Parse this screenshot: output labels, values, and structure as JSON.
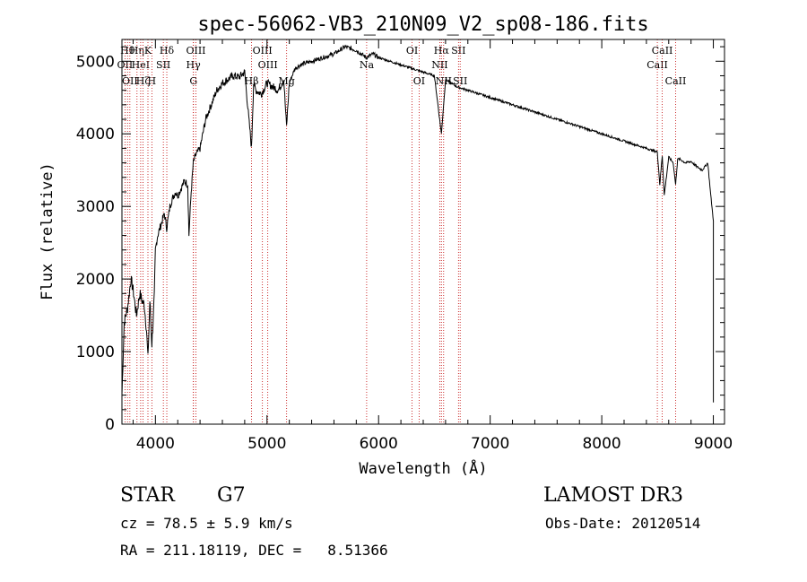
{
  "chart_data": {
    "type": "line",
    "title": "spec-56062-VB3_210N09_V2_sp08-186.fits",
    "xlabel": "Wavelength (Å)",
    "ylabel": "Flux (relative)",
    "xlim": [
      3700,
      9100
    ],
    "ylim": [
      0,
      5300
    ],
    "x_ticks": [
      4000,
      5000,
      6000,
      7000,
      8000,
      9000
    ],
    "y_ticks": [
      0,
      1000,
      2000,
      3000,
      4000,
      5000
    ],
    "series": [
      {
        "name": "flux",
        "x": [
          3700,
          3720,
          3750,
          3780,
          3800,
          3830,
          3860,
          3880,
          3900,
          3920,
          3933,
          3950,
          3968,
          3990,
          4000,
          4020,
          4050,
          4080,
          4101,
          4130,
          4150,
          4180,
          4200,
          4230,
          4260,
          4290,
          4300,
          4320,
          4340,
          4360,
          4400,
          4450,
          4500,
          4550,
          4600,
          4650,
          4700,
          4750,
          4800,
          4861,
          4880,
          4900,
          4950,
          5000,
          5050,
          5100,
          5150,
          5175,
          5200,
          5250,
          5300,
          5400,
          5500,
          5600,
          5700,
          5800,
          5890,
          5950,
          6000,
          6100,
          6200,
          6300,
          6400,
          6500,
          6563,
          6600,
          6650,
          6700,
          6800,
          6900,
          7000,
          7100,
          7200,
          7300,
          7400,
          7500,
          7600,
          7700,
          7800,
          7900,
          8000,
          8100,
          8200,
          8300,
          8400,
          8498,
          8520,
          8542,
          8560,
          8600,
          8640,
          8662,
          8680,
          8700,
          8750,
          8800,
          8850,
          8900,
          8950,
          8980,
          9000
        ],
        "y": [
          400,
          1400,
          1600,
          2000,
          1850,
          1500,
          1800,
          1700,
          1650,
          1300,
          900,
          1700,
          1100,
          1750,
          2400,
          2600,
          2750,
          2900,
          2700,
          3000,
          3100,
          3200,
          3150,
          3250,
          3350,
          3300,
          2600,
          3200,
          3600,
          3700,
          3800,
          4200,
          4400,
          4600,
          4700,
          4750,
          4800,
          4780,
          4850,
          3800,
          4700,
          4600,
          4550,
          4700,
          4650,
          4600,
          4750,
          4100,
          4700,
          4900,
          4950,
          5000,
          5050,
          5100,
          5200,
          5150,
          5050,
          5100,
          5050,
          5000,
          4950,
          4900,
          4850,
          4800,
          4000,
          4750,
          4700,
          4650,
          4600,
          4550,
          4500,
          4450,
          4400,
          4350,
          4300,
          4250,
          4200,
          4150,
          4100,
          4050,
          4000,
          3950,
          3900,
          3850,
          3800,
          3750,
          3300,
          3700,
          3150,
          3680,
          3600,
          3300,
          3650,
          3650,
          3600,
          3620,
          3550,
          3500,
          3600,
          3100,
          2800
        ]
      }
    ],
    "lines": [
      {
        "wl": 3727,
        "label": "OII",
        "row": 2
      },
      {
        "wl": 3750,
        "label": "Hθ",
        "row": 1
      },
      {
        "wl": 3771,
        "label": "OII",
        "row": 3
      },
      {
        "wl": 3835,
        "label": "Hη",
        "row": 1
      },
      {
        "wl": 3868,
        "label": "HeI",
        "row": 2
      },
      {
        "wl": 3889,
        "label": "Hζ",
        "row": 3
      },
      {
        "wl": 3933,
        "label": "K",
        "row": 1
      },
      {
        "wl": 3968,
        "label": "H",
        "row": 3
      },
      {
        "wl": 4071,
        "label": "SII",
        "row": 2
      },
      {
        "wl": 4102,
        "label": "Hδ",
        "row": 1
      },
      {
        "wl": 4340,
        "label": "Hγ",
        "row": 2
      },
      {
        "wl": 4341,
        "label": "G",
        "row": 3
      },
      {
        "wl": 4363,
        "label": "OIII",
        "row": 1
      },
      {
        "wl": 4861,
        "label": "Hβ",
        "row": 3
      },
      {
        "wl": 4959,
        "label": "OIII",
        "row": 1
      },
      {
        "wl": 5007,
        "label": "OIII",
        "row": 2
      },
      {
        "wl": 5176,
        "label": "Mg",
        "row": 3
      },
      {
        "wl": 5893,
        "label": "Na",
        "row": 2
      },
      {
        "wl": 6300,
        "label": "OI",
        "row": 1
      },
      {
        "wl": 6363,
        "label": "OI",
        "row": 3
      },
      {
        "wl": 6548,
        "label": "NII",
        "row": 2
      },
      {
        "wl": 6563,
        "label": "Hα",
        "row": 1
      },
      {
        "wl": 6583,
        "label": "NII",
        "row": 3
      },
      {
        "wl": 6716,
        "label": "SII",
        "row": 1
      },
      {
        "wl": 6731,
        "label": "SII",
        "row": 3
      },
      {
        "wl": 8498,
        "label": "CaII",
        "row": 2
      },
      {
        "wl": 8542,
        "label": "CaII",
        "row": 1
      },
      {
        "wl": 8662,
        "label": "CaII",
        "row": 3
      }
    ]
  },
  "info": {
    "class_label": "STAR",
    "subclass": "G7",
    "survey": "LAMOST DR3",
    "cz_line": "cz = 78.5 ± 5.9 km/s",
    "obs_date": "Obs-Date: 20120514",
    "coords": "RA = 211.18119, DEC =   8.51366"
  },
  "colors": {
    "spectrum": "#000000",
    "line_marker": "#c00000"
  }
}
